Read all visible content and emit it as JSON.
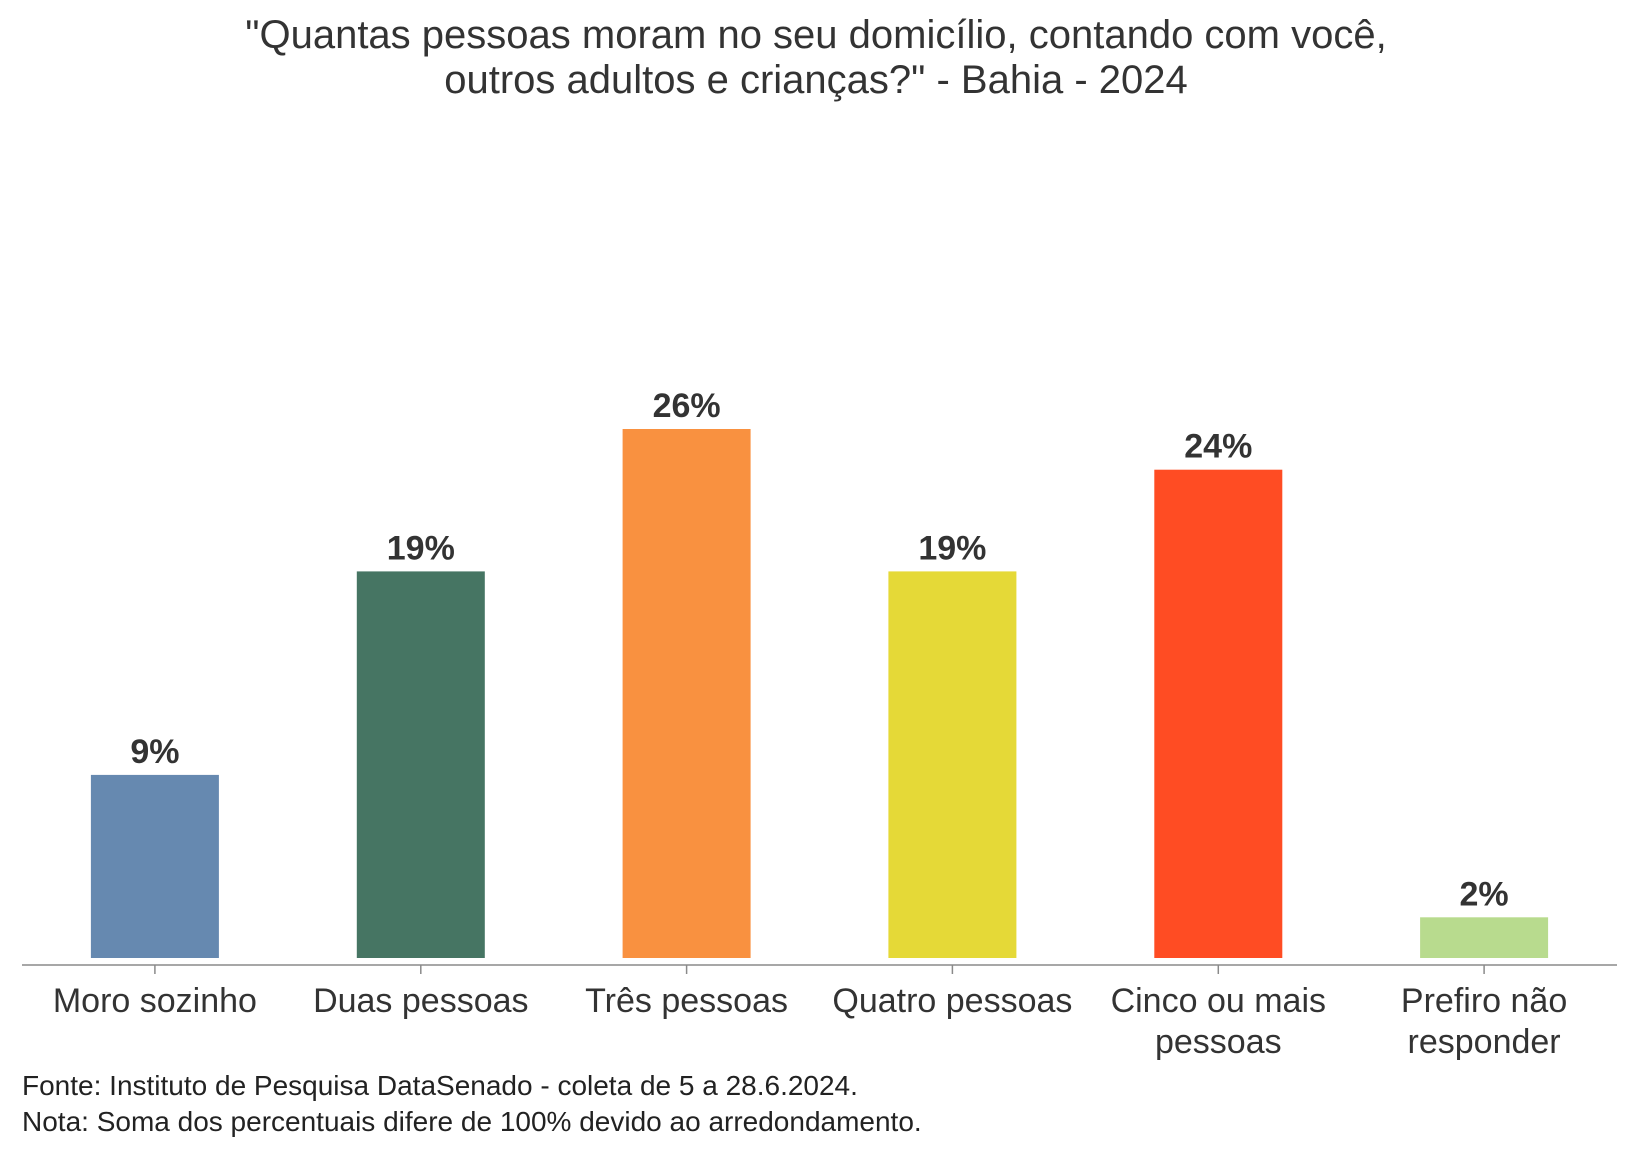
{
  "chart_data": {
    "type": "bar",
    "title_lines": [
      "\"Quantas pessoas moram no seu domicílio, contando com você,",
      "outros adultos e crianças?\" - Bahia - 2024"
    ],
    "categories": [
      [
        "Moro sozinho"
      ],
      [
        "Duas pessoas"
      ],
      [
        "Três pessoas"
      ],
      [
        "Quatro pessoas"
      ],
      [
        "Cinco ou mais",
        "pessoas"
      ],
      [
        "Prefiro não",
        "responder"
      ]
    ],
    "values": [
      9,
      19,
      26,
      19,
      24,
      2
    ],
    "value_labels": [
      "9%",
      "19%",
      "26%",
      "19%",
      "24%",
      "2%"
    ],
    "colors": [
      "#6689B0",
      "#467563",
      "#F99140",
      "#E5D937",
      "#FF4C23",
      "#B8DB8E"
    ],
    "ylim": [
      0,
      26
    ],
    "xlabel": "",
    "ylabel": ""
  },
  "footer": {
    "source": "Fonte: Instituto de Pesquisa DataSenado - coleta de 5 a 28.6.2024.",
    "note": "Nota: Soma dos percentuais difere de 100% devido ao arredondamento."
  }
}
